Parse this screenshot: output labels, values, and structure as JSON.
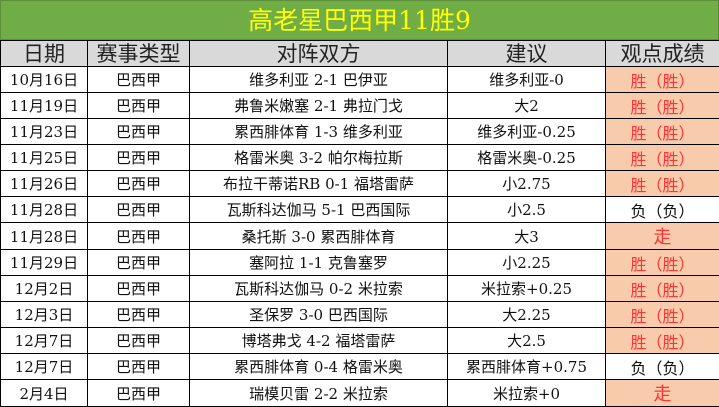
{
  "title": "高老星巴西甲11胜9",
  "headers": [
    "日期",
    "赛事类型",
    "对阵双方",
    "建议",
    "观点成绩"
  ],
  "colors": {
    "title_bg": "#70ad47",
    "title_text": "#ffff00",
    "header_bg": "#d9d9d9",
    "win_bg": "#f8cbad",
    "win_text": "#ff3333"
  },
  "rows": [
    {
      "date": "10月16日",
      "type": "巴西甲",
      "match": "维多利亚 2-1 巴伊亚",
      "tip": "维多利亚-0",
      "result": "胜（胜）",
      "status": "win"
    },
    {
      "date": "11月19日",
      "type": "巴西甲",
      "match": "弗鲁米嫩塞 2-1 弗拉门戈",
      "tip": "大2",
      "result": "胜（胜）",
      "status": "win"
    },
    {
      "date": "11月23日",
      "type": "巴西甲",
      "match": "累西腓体育 1-3 维多利亚",
      "tip": "维多利亚-0.25",
      "result": "胜（胜）",
      "status": "win"
    },
    {
      "date": "11月25日",
      "type": "巴西甲",
      "match": "格雷米奥 3-2 帕尔梅拉斯",
      "tip": "格雷米奥-0.25",
      "result": "胜（胜）",
      "status": "win"
    },
    {
      "date": "11月26日",
      "type": "巴西甲",
      "match": "布拉干蒂诺RB 0-1 福塔雷萨",
      "tip": "小2.75",
      "result": "胜（胜）",
      "status": "win"
    },
    {
      "date": "11月28日",
      "type": "巴西甲",
      "match": "瓦斯科达伽马 5-1 巴西国际",
      "tip": "小2.5",
      "result": "负（负）",
      "status": "loss"
    },
    {
      "date": "11月28日",
      "type": "巴西甲",
      "match": "桑托斯 3-0 累西腓体育",
      "tip": "大3",
      "result": "走",
      "status": "push"
    },
    {
      "date": "11月29日",
      "type": "巴西甲",
      "match": "塞阿拉 1-1 克鲁塞罗",
      "tip": "小2.25",
      "result": "胜（胜）",
      "status": "win"
    },
    {
      "date": "12月2日",
      "type": "巴西甲",
      "match": "瓦斯科达伽马 0-2 米拉索",
      "tip": "米拉索+0.25",
      "result": "胜（胜）",
      "status": "win"
    },
    {
      "date": "12月3日",
      "type": "巴西甲",
      "match": "圣保罗 3-0 巴西国际",
      "tip": "大2.25",
      "result": "胜（胜）",
      "status": "win"
    },
    {
      "date": "12月7日",
      "type": "巴西甲",
      "match": "博塔弗戈 4-2 福塔雷萨",
      "tip": "大2.5",
      "result": "胜（胜）",
      "status": "win"
    },
    {
      "date": "12月7日",
      "type": "巴西甲",
      "match": "累西腓体育 0-4 格雷米奥",
      "tip": "累西腓体育+0.75",
      "result": "负（负）",
      "status": "loss"
    },
    {
      "date": "2月4日",
      "type": "巴西甲",
      "match": "瑞模贝雷 2-2 米拉索",
      "tip": "米拉索+0",
      "result": "走",
      "status": "push"
    }
  ]
}
